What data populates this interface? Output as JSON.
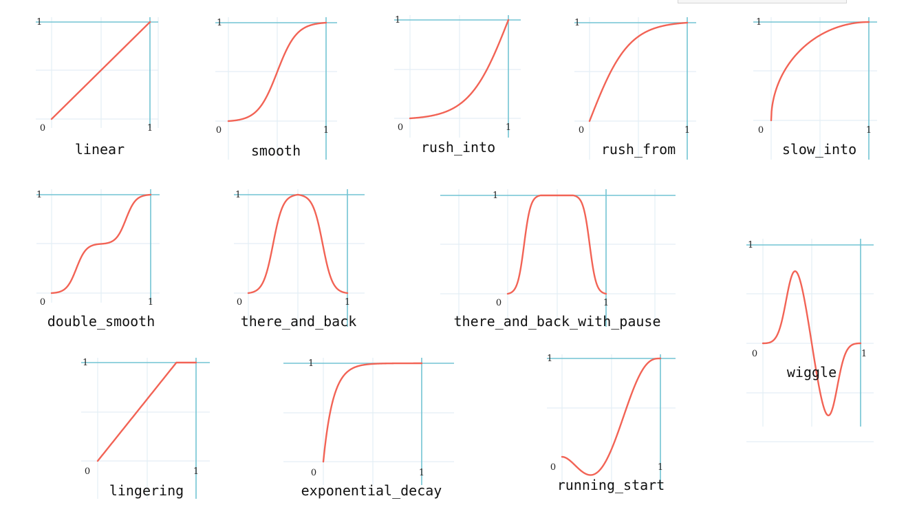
{
  "colors": {
    "curve": "#f26355",
    "axis": "#72c4d3",
    "grid": "#e3eef5"
  },
  "chart_data": [
    {
      "type": "line",
      "title": "linear",
      "function": "linear",
      "xlim": [
        0,
        1
      ],
      "ylim": [
        0,
        1
      ],
      "grid": true,
      "series": [
        {
          "x": [
            0,
            0.25,
            0.5,
            0.75,
            1
          ],
          "y": [
            0,
            0.25,
            0.5,
            0.75,
            1
          ]
        }
      ]
    },
    {
      "type": "line",
      "title": "smooth",
      "function": "smooth",
      "xlim": [
        0,
        1
      ],
      "ylim": [
        0,
        1
      ],
      "grid": true,
      "series": [
        {
          "x": [
            0,
            0.25,
            0.5,
            0.75,
            1
          ],
          "y": [
            0,
            0.08,
            0.5,
            0.92,
            1
          ]
        }
      ]
    },
    {
      "type": "line",
      "title": "rush_into",
      "function": "rush_into",
      "xlim": [
        0,
        1
      ],
      "ylim": [
        0,
        1
      ],
      "grid": true,
      "series": [
        {
          "x": [
            0,
            0.25,
            0.5,
            0.75,
            1
          ],
          "y": [
            0,
            0.04,
            0.16,
            0.46,
            1
          ]
        }
      ]
    },
    {
      "type": "line",
      "title": "rush_from",
      "function": "rush_from",
      "xlim": [
        0,
        1
      ],
      "ylim": [
        0,
        1
      ],
      "grid": true,
      "series": [
        {
          "x": [
            0,
            0.25,
            0.5,
            0.75,
            1
          ],
          "y": [
            0,
            0.54,
            0.84,
            0.96,
            1
          ]
        }
      ]
    },
    {
      "type": "line",
      "title": "slow_into",
      "function": "slow_into",
      "xlim": [
        0,
        1
      ],
      "ylim": [
        0,
        1
      ],
      "grid": true,
      "series": [
        {
          "x": [
            0,
            0.25,
            0.5,
            0.75,
            1
          ],
          "y": [
            0,
            0.66,
            0.87,
            0.97,
            1
          ]
        }
      ]
    },
    {
      "type": "line",
      "title": "double_smooth",
      "function": "double_smooth",
      "xlim": [
        0,
        1
      ],
      "ylim": [
        0,
        1
      ],
      "grid": true,
      "series": [
        {
          "x": [
            0,
            0.25,
            0.5,
            0.75,
            1
          ],
          "y": [
            0,
            0.25,
            0.5,
            0.75,
            1
          ]
        }
      ]
    },
    {
      "type": "line",
      "title": "there_and_back",
      "function": "there_and_back",
      "xlim": [
        0,
        1
      ],
      "ylim": [
        0,
        1
      ],
      "grid": true,
      "series": [
        {
          "x": [
            0,
            0.25,
            0.5,
            0.75,
            1
          ],
          "y": [
            0,
            0.5,
            1,
            0.5,
            0
          ]
        }
      ]
    },
    {
      "type": "line",
      "title": "there_and_back_with_pause",
      "function": "there_and_back_with_pause",
      "xlim": [
        0,
        1
      ],
      "ylim": [
        0,
        1
      ],
      "grid": true,
      "series": [
        {
          "x": [
            0,
            0.2,
            0.33,
            0.67,
            0.8,
            1
          ],
          "y": [
            0,
            0.5,
            1,
            1,
            0.5,
            0
          ]
        }
      ]
    },
    {
      "type": "line",
      "title": "wiggle",
      "function": "wiggle",
      "xlim": [
        0,
        1
      ],
      "ylim": [
        -1,
        1
      ],
      "grid": true,
      "series": [
        {
          "x": [
            0,
            0.3,
            0.5,
            0.65,
            1
          ],
          "y": [
            0,
            0.75,
            0,
            -0.75,
            0
          ]
        }
      ]
    },
    {
      "type": "line",
      "title": "lingering",
      "function": "lingering",
      "xlim": [
        0,
        1
      ],
      "ylim": [
        0,
        1
      ],
      "grid": true,
      "series": [
        {
          "x": [
            0,
            0.4,
            0.8,
            1
          ],
          "y": [
            0,
            0.5,
            1,
            1
          ]
        }
      ]
    },
    {
      "type": "line",
      "title": "exponential_decay",
      "function": "exponential_decay",
      "xlim": [
        0,
        1
      ],
      "ylim": [
        0,
        1
      ],
      "grid": true,
      "series": [
        {
          "x": [
            0,
            0.1,
            0.2,
            0.5,
            1
          ],
          "y": [
            0,
            0.63,
            0.86,
            0.99,
            1
          ]
        }
      ]
    },
    {
      "type": "line",
      "title": "running_start",
      "function": "running_start",
      "xlim": [
        0,
        1
      ],
      "ylim": [
        -0.1,
        1
      ],
      "grid": true,
      "series": [
        {
          "x": [
            0,
            0.3,
            0.6,
            1
          ],
          "y": [
            0,
            -0.15,
            0.55,
            1
          ]
        }
      ]
    }
  ]
}
